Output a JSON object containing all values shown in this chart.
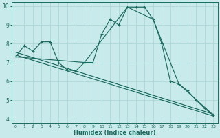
{
  "xlabel": "Humidex (Indice chaleur)",
  "bg_color": "#c8eaea",
  "line_color": "#1a6b60",
  "grid_color": "#aad4d4",
  "xlim": [
    -0.5,
    23.5
  ],
  "ylim": [
    3.8,
    10.2
  ],
  "yticks": [
    4,
    5,
    6,
    7,
    8,
    9,
    10
  ],
  "xticks": [
    0,
    1,
    2,
    3,
    4,
    5,
    6,
    7,
    8,
    9,
    10,
    11,
    12,
    13,
    14,
    15,
    16,
    17,
    18,
    19,
    20,
    21,
    22,
    23
  ],
  "curve1_x": [
    0,
    1,
    2,
    3,
    4,
    5,
    6,
    7,
    8,
    9,
    10,
    11,
    12,
    13,
    14,
    15,
    16,
    17,
    18,
    19,
    20,
    21,
    22,
    23
  ],
  "curve1_y": [
    7.3,
    7.9,
    7.6,
    8.1,
    8.1,
    7.0,
    6.6,
    6.55,
    7.0,
    7.0,
    8.5,
    9.3,
    9.0,
    9.95,
    9.95,
    9.95,
    9.3,
    8.0,
    6.0,
    5.85,
    5.5,
    5.0,
    4.55,
    4.2
  ],
  "line2_x": [
    0,
    23
  ],
  "line2_y": [
    7.55,
    4.25
  ],
  "line3_x": [
    0,
    23
  ],
  "line3_y": [
    7.4,
    4.15
  ],
  "line4_x": [
    0,
    8,
    13,
    16,
    19,
    23
  ],
  "line4_y": [
    7.3,
    7.0,
    9.95,
    9.3,
    5.85,
    4.2
  ]
}
